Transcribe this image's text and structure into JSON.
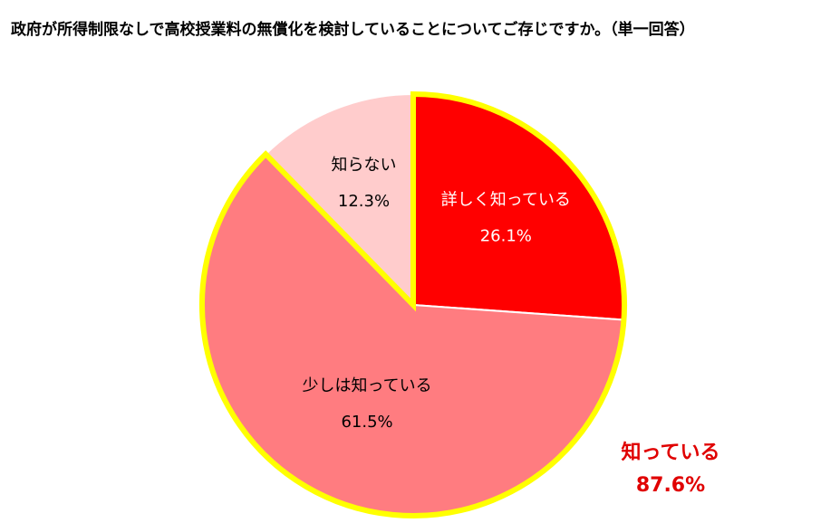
{
  "chart_data": {
    "type": "pie",
    "title": "政府が所得制限なしで高校授業料の無償化を検討していることについてご存じですか。（単一回答）",
    "categories": [
      "詳しく知っている",
      "少しは知っている",
      "知らない"
    ],
    "values": [
      26.1,
      61.5,
      12.3
    ],
    "value_labels": [
      "26.1%",
      "61.5%",
      "12.3%"
    ],
    "colors": [
      "#ff0000",
      "#ff7c80",
      "#ffcccc"
    ],
    "annotation": {
      "label": "知っている",
      "value_label": "87.6%",
      "color": "#e00000",
      "outline_color": "#ffff00"
    }
  }
}
